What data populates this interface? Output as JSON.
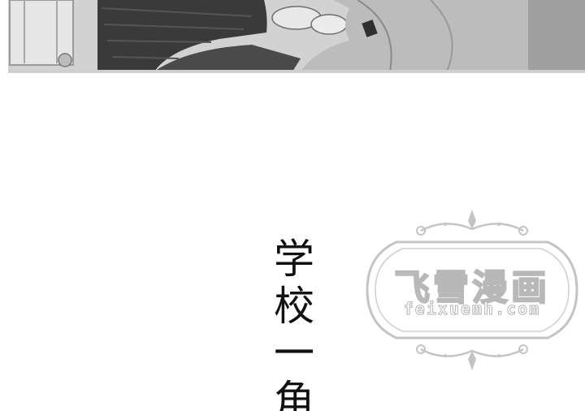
{
  "caption": {
    "chars": [
      "学",
      "校",
      "一",
      "角"
    ]
  },
  "watermark": {
    "title": "飞雪漫画",
    "url": "feixuemh.com"
  }
}
